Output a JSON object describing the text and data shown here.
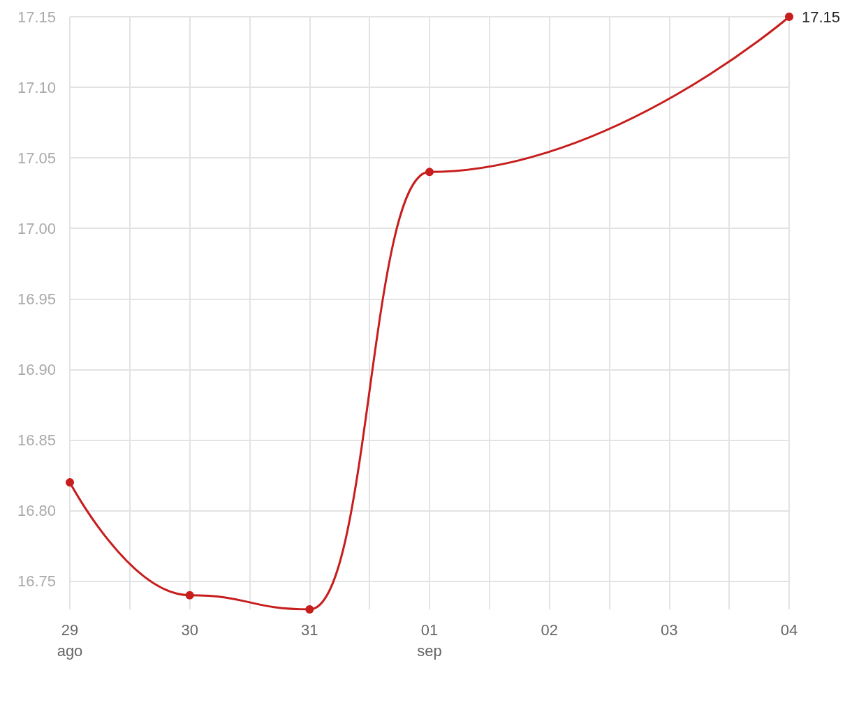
{
  "chart_data": {
    "type": "line",
    "x": [
      "--08-29",
      "--08-30",
      "--08-31",
      "--09-01",
      "--09-04"
    ],
    "series": [
      {
        "color": "#c71e1d",
        "values": [
          16.82,
          16.74,
          16.73,
          17.04,
          17.15
        ],
        "value_labels": [
          null,
          null,
          null,
          null,
          "17.15"
        ]
      }
    ],
    "xlim": [
      "--08-29",
      "--09-04"
    ],
    "xticks": [
      {
        "value": "--08-29",
        "label": "29\nago"
      },
      {
        "value": "--08-29T12:00",
        "label": null
      },
      {
        "value": "--08-30",
        "label": "30"
      },
      {
        "value": "--08-30T12:00",
        "label": null
      },
      {
        "value": "--08-31",
        "label": "31"
      },
      {
        "value": "--08-31T12:00",
        "label": null
      },
      {
        "value": "--09-01",
        "label": "01\nsep"
      },
      {
        "value": "--09-01T12:00",
        "label": null
      },
      {
        "value": "--09-02",
        "label": "02"
      },
      {
        "value": "--09-02T12:00",
        "label": null
      },
      {
        "value": "--09-03",
        "label": "03"
      },
      {
        "value": "--09-03T12:00",
        "label": null
      },
      {
        "value": "--09-04",
        "label": "04"
      }
    ],
    "ylim": [
      16.73,
      17.15
    ],
    "yticks": [
      16.75,
      {
        "value": 16.8,
        "label": "16.80"
      },
      16.85,
      {
        "value": 16.9,
        "label": "16.90"
      },
      16.95,
      {
        "value": 17,
        "label": "17.00"
      },
      17.05,
      {
        "value": 17.1,
        "label": "17.10"
      },
      17.15
    ],
    "grid": true,
    "marker": "circle",
    "line_style": "solid"
  }
}
